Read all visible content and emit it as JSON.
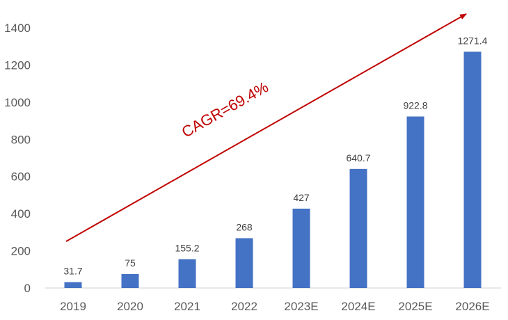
{
  "chart_data": {
    "type": "bar",
    "title": "",
    "xlabel": "",
    "ylabel": "",
    "categories": [
      "2019",
      "2020",
      "2021",
      "2022",
      "2023E",
      "2024E",
      "2025E",
      "2026E"
    ],
    "values": [
      31.7,
      75,
      155.2,
      268,
      427,
      640.7,
      922.8,
      1271.4
    ],
    "data_labels": [
      "31.7",
      "75",
      "155.2",
      "268",
      "427",
      "640.7",
      "922.8",
      "1271.4"
    ],
    "ylim": [
      0,
      1400
    ],
    "yticks": [
      0,
      200,
      400,
      600,
      800,
      1000,
      1200,
      1400
    ],
    "grid": false,
    "legend": "none",
    "bar_color": "#4472c4",
    "annotation": {
      "text": "CAGR=69.4%",
      "color": "#c00000",
      "arrow": "trend arrow pointing up-right"
    }
  }
}
